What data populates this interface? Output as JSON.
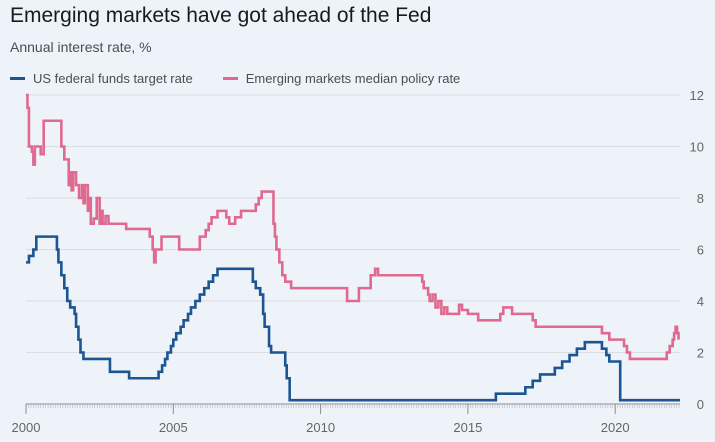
{
  "title": "Emerging markets have got ahead of the Fed",
  "subtitle": "Annual interest rate, %",
  "colors": {
    "us": "#1b5592",
    "em": "#e0698f",
    "grid": "#d9dde4",
    "axis": "#8c8c8c",
    "background": "#eef2f9"
  },
  "chart_data": {
    "type": "line",
    "title": "Emerging markets have got ahead of the Fed",
    "subtitle": "Annual interest rate, %",
    "xlabel": "",
    "ylabel": "",
    "xlim": [
      2000,
      2022.2
    ],
    "ylim": [
      0,
      12
    ],
    "x_ticks": [
      "2000",
      "2005",
      "2010",
      "2015",
      "2020"
    ],
    "y_ticks": [
      "0",
      "2",
      "4",
      "6",
      "8",
      "10",
      "12"
    ],
    "legend_position": "top-left",
    "grid": true,
    "series": [
      {
        "name": "US federal funds target rate",
        "color": "#1b5592",
        "step": true,
        "points": [
          [
            2000.0,
            5.5
          ],
          [
            2000.1,
            5.75
          ],
          [
            2000.25,
            6.0
          ],
          [
            2000.35,
            6.5
          ],
          [
            2000.95,
            6.5
          ],
          [
            2001.05,
            6.0
          ],
          [
            2001.1,
            5.5
          ],
          [
            2001.2,
            5.0
          ],
          [
            2001.3,
            4.5
          ],
          [
            2001.4,
            4.0
          ],
          [
            2001.5,
            3.75
          ],
          [
            2001.65,
            3.5
          ],
          [
            2001.7,
            3.0
          ],
          [
            2001.78,
            2.5
          ],
          [
            2001.85,
            2.0
          ],
          [
            2001.95,
            1.75
          ],
          [
            2002.85,
            1.25
          ],
          [
            2003.5,
            1.0
          ],
          [
            2004.5,
            1.25
          ],
          [
            2004.62,
            1.5
          ],
          [
            2004.72,
            1.75
          ],
          [
            2004.8,
            2.0
          ],
          [
            2004.92,
            2.25
          ],
          [
            2005.0,
            2.5
          ],
          [
            2005.1,
            2.75
          ],
          [
            2005.25,
            3.0
          ],
          [
            2005.35,
            3.25
          ],
          [
            2005.5,
            3.5
          ],
          [
            2005.6,
            3.75
          ],
          [
            2005.75,
            4.0
          ],
          [
            2005.9,
            4.25
          ],
          [
            2006.05,
            4.5
          ],
          [
            2006.2,
            4.75
          ],
          [
            2006.35,
            5.0
          ],
          [
            2006.5,
            5.25
          ],
          [
            2007.7,
            4.75
          ],
          [
            2007.8,
            4.5
          ],
          [
            2007.95,
            4.25
          ],
          [
            2008.05,
            3.5
          ],
          [
            2008.1,
            3.0
          ],
          [
            2008.25,
            2.25
          ],
          [
            2008.32,
            2.0
          ],
          [
            2008.8,
            1.5
          ],
          [
            2008.85,
            1.0
          ],
          [
            2008.95,
            0.15
          ],
          [
            2015.95,
            0.4
          ],
          [
            2016.95,
            0.65
          ],
          [
            2017.2,
            0.9
          ],
          [
            2017.45,
            1.15
          ],
          [
            2017.95,
            1.4
          ],
          [
            2018.2,
            1.65
          ],
          [
            2018.45,
            1.9
          ],
          [
            2018.7,
            2.15
          ],
          [
            2018.97,
            2.4
          ],
          [
            2019.55,
            2.15
          ],
          [
            2019.7,
            1.9
          ],
          [
            2019.8,
            1.65
          ],
          [
            2020.17,
            0.15
          ],
          [
            2022.2,
            0.15
          ]
        ]
      },
      {
        "name": "Emerging markets median policy rate",
        "color": "#e0698f",
        "step": true,
        "points": [
          [
            2000.0,
            12.0
          ],
          [
            2000.05,
            11.5
          ],
          [
            2000.1,
            10.0
          ],
          [
            2000.2,
            9.8
          ],
          [
            2000.25,
            9.3
          ],
          [
            2000.3,
            10.0
          ],
          [
            2000.5,
            9.7
          ],
          [
            2000.6,
            11.0
          ],
          [
            2001.2,
            10.0
          ],
          [
            2001.3,
            9.5
          ],
          [
            2001.45,
            8.5
          ],
          [
            2001.5,
            9.0
          ],
          [
            2001.55,
            8.3
          ],
          [
            2001.6,
            9.0
          ],
          [
            2001.7,
            8.5
          ],
          [
            2001.8,
            8.0
          ],
          [
            2001.9,
            8.5
          ],
          [
            2001.95,
            7.8
          ],
          [
            2002.0,
            8.5
          ],
          [
            2002.1,
            7.5
          ],
          [
            2002.15,
            8.0
          ],
          [
            2002.2,
            7.0
          ],
          [
            2002.3,
            7.2
          ],
          [
            2002.4,
            8.0
          ],
          [
            2002.5,
            7.0
          ],
          [
            2002.55,
            7.5
          ],
          [
            2002.6,
            7.0
          ],
          [
            2002.7,
            7.3
          ],
          [
            2002.8,
            7.0
          ],
          [
            2003.3,
            7.0
          ],
          [
            2003.4,
            6.8
          ],
          [
            2004.2,
            6.5
          ],
          [
            2004.3,
            6.0
          ],
          [
            2004.35,
            5.5
          ],
          [
            2004.4,
            6.0
          ],
          [
            2004.6,
            6.5
          ],
          [
            2005.2,
            6.0
          ],
          [
            2005.9,
            6.5
          ],
          [
            2006.1,
            6.75
          ],
          [
            2006.2,
            7.0
          ],
          [
            2006.3,
            7.25
          ],
          [
            2006.5,
            7.5
          ],
          [
            2006.8,
            7.25
          ],
          [
            2006.9,
            7.0
          ],
          [
            2007.1,
            7.25
          ],
          [
            2007.3,
            7.5
          ],
          [
            2007.8,
            7.75
          ],
          [
            2007.9,
            8.0
          ],
          [
            2008.0,
            8.25
          ],
          [
            2008.4,
            7.0
          ],
          [
            2008.45,
            6.5
          ],
          [
            2008.5,
            6.0
          ],
          [
            2008.6,
            5.5
          ],
          [
            2008.7,
            5.0
          ],
          [
            2008.8,
            4.75
          ],
          [
            2009.0,
            4.5
          ],
          [
            2010.9,
            4.0
          ],
          [
            2011.3,
            4.5
          ],
          [
            2011.7,
            5.0
          ],
          [
            2011.85,
            5.25
          ],
          [
            2011.95,
            5.0
          ],
          [
            2013.45,
            4.75
          ],
          [
            2013.5,
            4.5
          ],
          [
            2013.65,
            4.25
          ],
          [
            2013.7,
            4.0
          ],
          [
            2013.8,
            4.25
          ],
          [
            2013.9,
            3.75
          ],
          [
            2014.0,
            4.0
          ],
          [
            2014.1,
            3.5
          ],
          [
            2014.2,
            3.75
          ],
          [
            2014.3,
            3.5
          ],
          [
            2014.5,
            3.5
          ],
          [
            2014.7,
            3.85
          ],
          [
            2014.8,
            3.65
          ],
          [
            2015.0,
            3.5
          ],
          [
            2015.35,
            3.25
          ],
          [
            2016.1,
            3.5
          ],
          [
            2016.2,
            3.75
          ],
          [
            2016.5,
            3.5
          ],
          [
            2017.2,
            3.25
          ],
          [
            2017.3,
            3.0
          ],
          [
            2019.55,
            2.75
          ],
          [
            2019.8,
            2.5
          ],
          [
            2020.3,
            2.25
          ],
          [
            2020.4,
            2.0
          ],
          [
            2020.5,
            1.75
          ],
          [
            2021.75,
            2.0
          ],
          [
            2021.85,
            2.25
          ],
          [
            2021.95,
            2.5
          ],
          [
            2022.0,
            2.75
          ],
          [
            2022.05,
            3.0
          ],
          [
            2022.1,
            2.75
          ],
          [
            2022.15,
            2.5
          ]
        ]
      }
    ]
  }
}
